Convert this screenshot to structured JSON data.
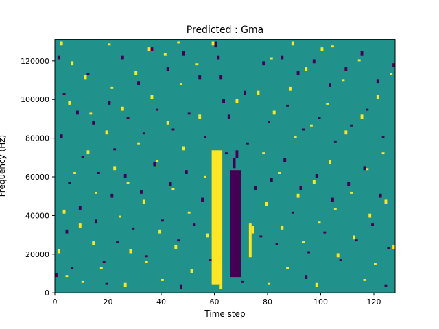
{
  "title": "Predicted : Gma",
  "chart_data": {
    "type": "heatmap",
    "title": "Predicted : Gma",
    "xlabel": "Time step",
    "ylabel": "Frequency (Hz)",
    "xlim": [
      0,
      128
    ],
    "ylim": [
      0,
      131072
    ],
    "x_ticks": [
      0,
      20,
      40,
      60,
      80,
      100,
      120
    ],
    "y_ticks": [
      0,
      20000,
      40000,
      60000,
      80000,
      100000,
      120000
    ],
    "grid": false,
    "legend": "none",
    "colormap": "viridis",
    "colors": {
      "background": "#21918c",
      "high": "#fde725",
      "low": "#440154",
      "frame": "#000000"
    },
    "grid_size": {
      "cols": 128,
      "rows": 128
    },
    "bands": [
      {
        "col0": 59,
        "col1": 63,
        "row0": 4,
        "row1": 72,
        "value": "high"
      },
      {
        "col0": 66,
        "col1": 70,
        "row0": 8,
        "row1": 62,
        "value": "low"
      }
    ],
    "cells_high": [
      [
        2,
        125,
        2
      ],
      [
        5,
        95,
        2
      ],
      [
        7,
        60,
        1
      ],
      [
        3,
        40,
        2
      ],
      [
        1,
        20,
        2
      ],
      [
        4,
        8,
        1
      ],
      [
        9,
        33,
        2
      ],
      [
        11,
        108,
        2
      ],
      [
        13,
        90,
        1
      ],
      [
        12,
        70,
        2
      ],
      [
        15,
        50,
        1
      ],
      [
        14,
        24,
        2
      ],
      [
        17,
        12,
        1
      ],
      [
        19,
        80,
        2
      ],
      [
        21,
        103,
        1
      ],
      [
        22,
        62,
        2
      ],
      [
        24,
        38,
        1
      ],
      [
        25,
        92,
        2
      ],
      [
        27,
        55,
        1
      ],
      [
        28,
        20,
        2
      ],
      [
        30,
        110,
        2
      ],
      [
        31,
        75,
        1
      ],
      [
        33,
        45,
        2
      ],
      [
        34,
        15,
        1
      ],
      [
        36,
        98,
        2
      ],
      [
        38,
        66,
        1
      ],
      [
        39,
        30,
        2
      ],
      [
        41,
        120,
        1
      ],
      [
        42,
        85,
        2
      ],
      [
        44,
        52,
        1
      ],
      [
        45,
        22,
        2
      ],
      [
        47,
        105,
        1
      ],
      [
        48,
        72,
        2
      ],
      [
        50,
        40,
        1
      ],
      [
        51,
        10,
        2
      ],
      [
        53,
        115,
        1
      ],
      [
        54,
        88,
        2
      ],
      [
        56,
        58,
        1
      ],
      [
        57,
        28,
        2
      ],
      [
        73,
        18,
        17
      ],
      [
        74,
        30,
        4
      ],
      [
        76,
        100,
        2
      ],
      [
        78,
        70,
        1
      ],
      [
        79,
        44,
        2
      ],
      [
        81,
        118,
        1
      ],
      [
        82,
        90,
        2
      ],
      [
        84,
        60,
        1
      ],
      [
        85,
        32,
        2
      ],
      [
        87,
        12,
        1
      ],
      [
        88,
        102,
        2
      ],
      [
        90,
        78,
        1
      ],
      [
        91,
        48,
        2
      ],
      [
        93,
        25,
        1
      ],
      [
        94,
        112,
        2
      ],
      [
        96,
        84,
        1
      ],
      [
        97,
        55,
        2
      ],
      [
        99,
        35,
        1
      ],
      [
        100,
        122,
        2
      ],
      [
        102,
        95,
        1
      ],
      [
        103,
        65,
        2
      ],
      [
        105,
        42,
        1
      ],
      [
        106,
        18,
        2
      ],
      [
        108,
        107,
        1
      ],
      [
        109,
        80,
        2
      ],
      [
        111,
        50,
        1
      ],
      [
        112,
        27,
        2
      ],
      [
        114,
        117,
        1
      ],
      [
        115,
        88,
        2
      ],
      [
        117,
        62,
        1
      ],
      [
        118,
        38,
        2
      ],
      [
        120,
        14,
        1
      ],
      [
        121,
        98,
        2
      ],
      [
        123,
        70,
        1
      ],
      [
        124,
        45,
        2
      ],
      [
        126,
        110,
        1
      ],
      [
        127,
        22,
        2
      ],
      [
        6,
        115,
        2
      ],
      [
        20,
        125,
        1
      ],
      [
        35,
        122,
        2
      ],
      [
        59,
        125,
        2
      ],
      [
        68,
        96,
        2
      ],
      [
        46,
        126,
        1
      ],
      [
        89,
        125,
        2
      ],
      [
        104,
        124,
        1
      ],
      [
        10,
        5,
        1
      ],
      [
        26,
        3,
        2
      ],
      [
        40,
        6,
        1
      ],
      [
        62,
        2,
        2
      ],
      [
        80,
        4,
        1
      ],
      [
        98,
        3,
        2
      ],
      [
        116,
        6,
        1
      ]
    ],
    "cells_low": [
      [
        1,
        118,
        2
      ],
      [
        3,
        100,
        1
      ],
      [
        2,
        78,
        2
      ],
      [
        5,
        55,
        1
      ],
      [
        4,
        30,
        2
      ],
      [
        6,
        12,
        1
      ],
      [
        8,
        90,
        2
      ],
      [
        10,
        68,
        1
      ],
      [
        9,
        42,
        2
      ],
      [
        12,
        110,
        1
      ],
      [
        14,
        85,
        2
      ],
      [
        16,
        60,
        1
      ],
      [
        15,
        35,
        2
      ],
      [
        18,
        15,
        1
      ],
      [
        20,
        95,
        2
      ],
      [
        22,
        72,
        1
      ],
      [
        21,
        48,
        2
      ],
      [
        23,
        25,
        1
      ],
      [
        25,
        118,
        2
      ],
      [
        27,
        88,
        1
      ],
      [
        26,
        58,
        2
      ],
      [
        29,
        32,
        1
      ],
      [
        31,
        105,
        2
      ],
      [
        33,
        80,
        1
      ],
      [
        32,
        50,
        2
      ],
      [
        34,
        18,
        1
      ],
      [
        36,
        122,
        2
      ],
      [
        38,
        92,
        1
      ],
      [
        37,
        64,
        2
      ],
      [
        40,
        36,
        1
      ],
      [
        42,
        112,
        2
      ],
      [
        44,
        82,
        1
      ],
      [
        43,
        54,
        2
      ],
      [
        46,
        26,
        1
      ],
      [
        48,
        120,
        2
      ],
      [
        50,
        90,
        1
      ],
      [
        49,
        60,
        2
      ],
      [
        52,
        34,
        1
      ],
      [
        54,
        108,
        2
      ],
      [
        56,
        78,
        1
      ],
      [
        55,
        46,
        2
      ],
      [
        58,
        16,
        1
      ],
      [
        71,
        100,
        2
      ],
      [
        72,
        75,
        1
      ],
      [
        75,
        52,
        2
      ],
      [
        77,
        28,
        1
      ],
      [
        78,
        115,
        2
      ],
      [
        80,
        86,
        1
      ],
      [
        81,
        56,
        2
      ],
      [
        83,
        24,
        1
      ],
      [
        85,
        118,
        2
      ],
      [
        87,
        94,
        1
      ],
      [
        86,
        66,
        2
      ],
      [
        89,
        40,
        1
      ],
      [
        91,
        110,
        2
      ],
      [
        93,
        82,
        1
      ],
      [
        92,
        52,
        2
      ],
      [
        95,
        20,
        1
      ],
      [
        97,
        116,
        2
      ],
      [
        99,
        88,
        1
      ],
      [
        98,
        58,
        2
      ],
      [
        101,
        30,
        1
      ],
      [
        103,
        104,
        2
      ],
      [
        105,
        76,
        1
      ],
      [
        104,
        46,
        2
      ],
      [
        107,
        16,
        1
      ],
      [
        109,
        112,
        2
      ],
      [
        111,
        84,
        1
      ],
      [
        110,
        54,
        2
      ],
      [
        113,
        26,
        1
      ],
      [
        115,
        120,
        2
      ],
      [
        117,
        92,
        1
      ],
      [
        116,
        62,
        2
      ],
      [
        119,
        34,
        1
      ],
      [
        121,
        106,
        2
      ],
      [
        123,
        78,
        1
      ],
      [
        122,
        48,
        2
      ],
      [
        125,
        22,
        1
      ],
      [
        127,
        114,
        2
      ],
      [
        60,
        124,
        3
      ],
      [
        61,
        118,
        2
      ],
      [
        63,
        96,
        2
      ],
      [
        64,
        70,
        1
      ],
      [
        65,
        88,
        2
      ],
      [
        62,
        108,
        2
      ],
      [
        67,
        63,
        5
      ],
      [
        68,
        68,
        4
      ],
      [
        0,
        8,
        2
      ],
      [
        19,
        4,
        1
      ],
      [
        47,
        2,
        2
      ],
      [
        70,
        5,
        1
      ],
      [
        94,
        7,
        2
      ],
      [
        124,
        3,
        1
      ]
    ]
  }
}
